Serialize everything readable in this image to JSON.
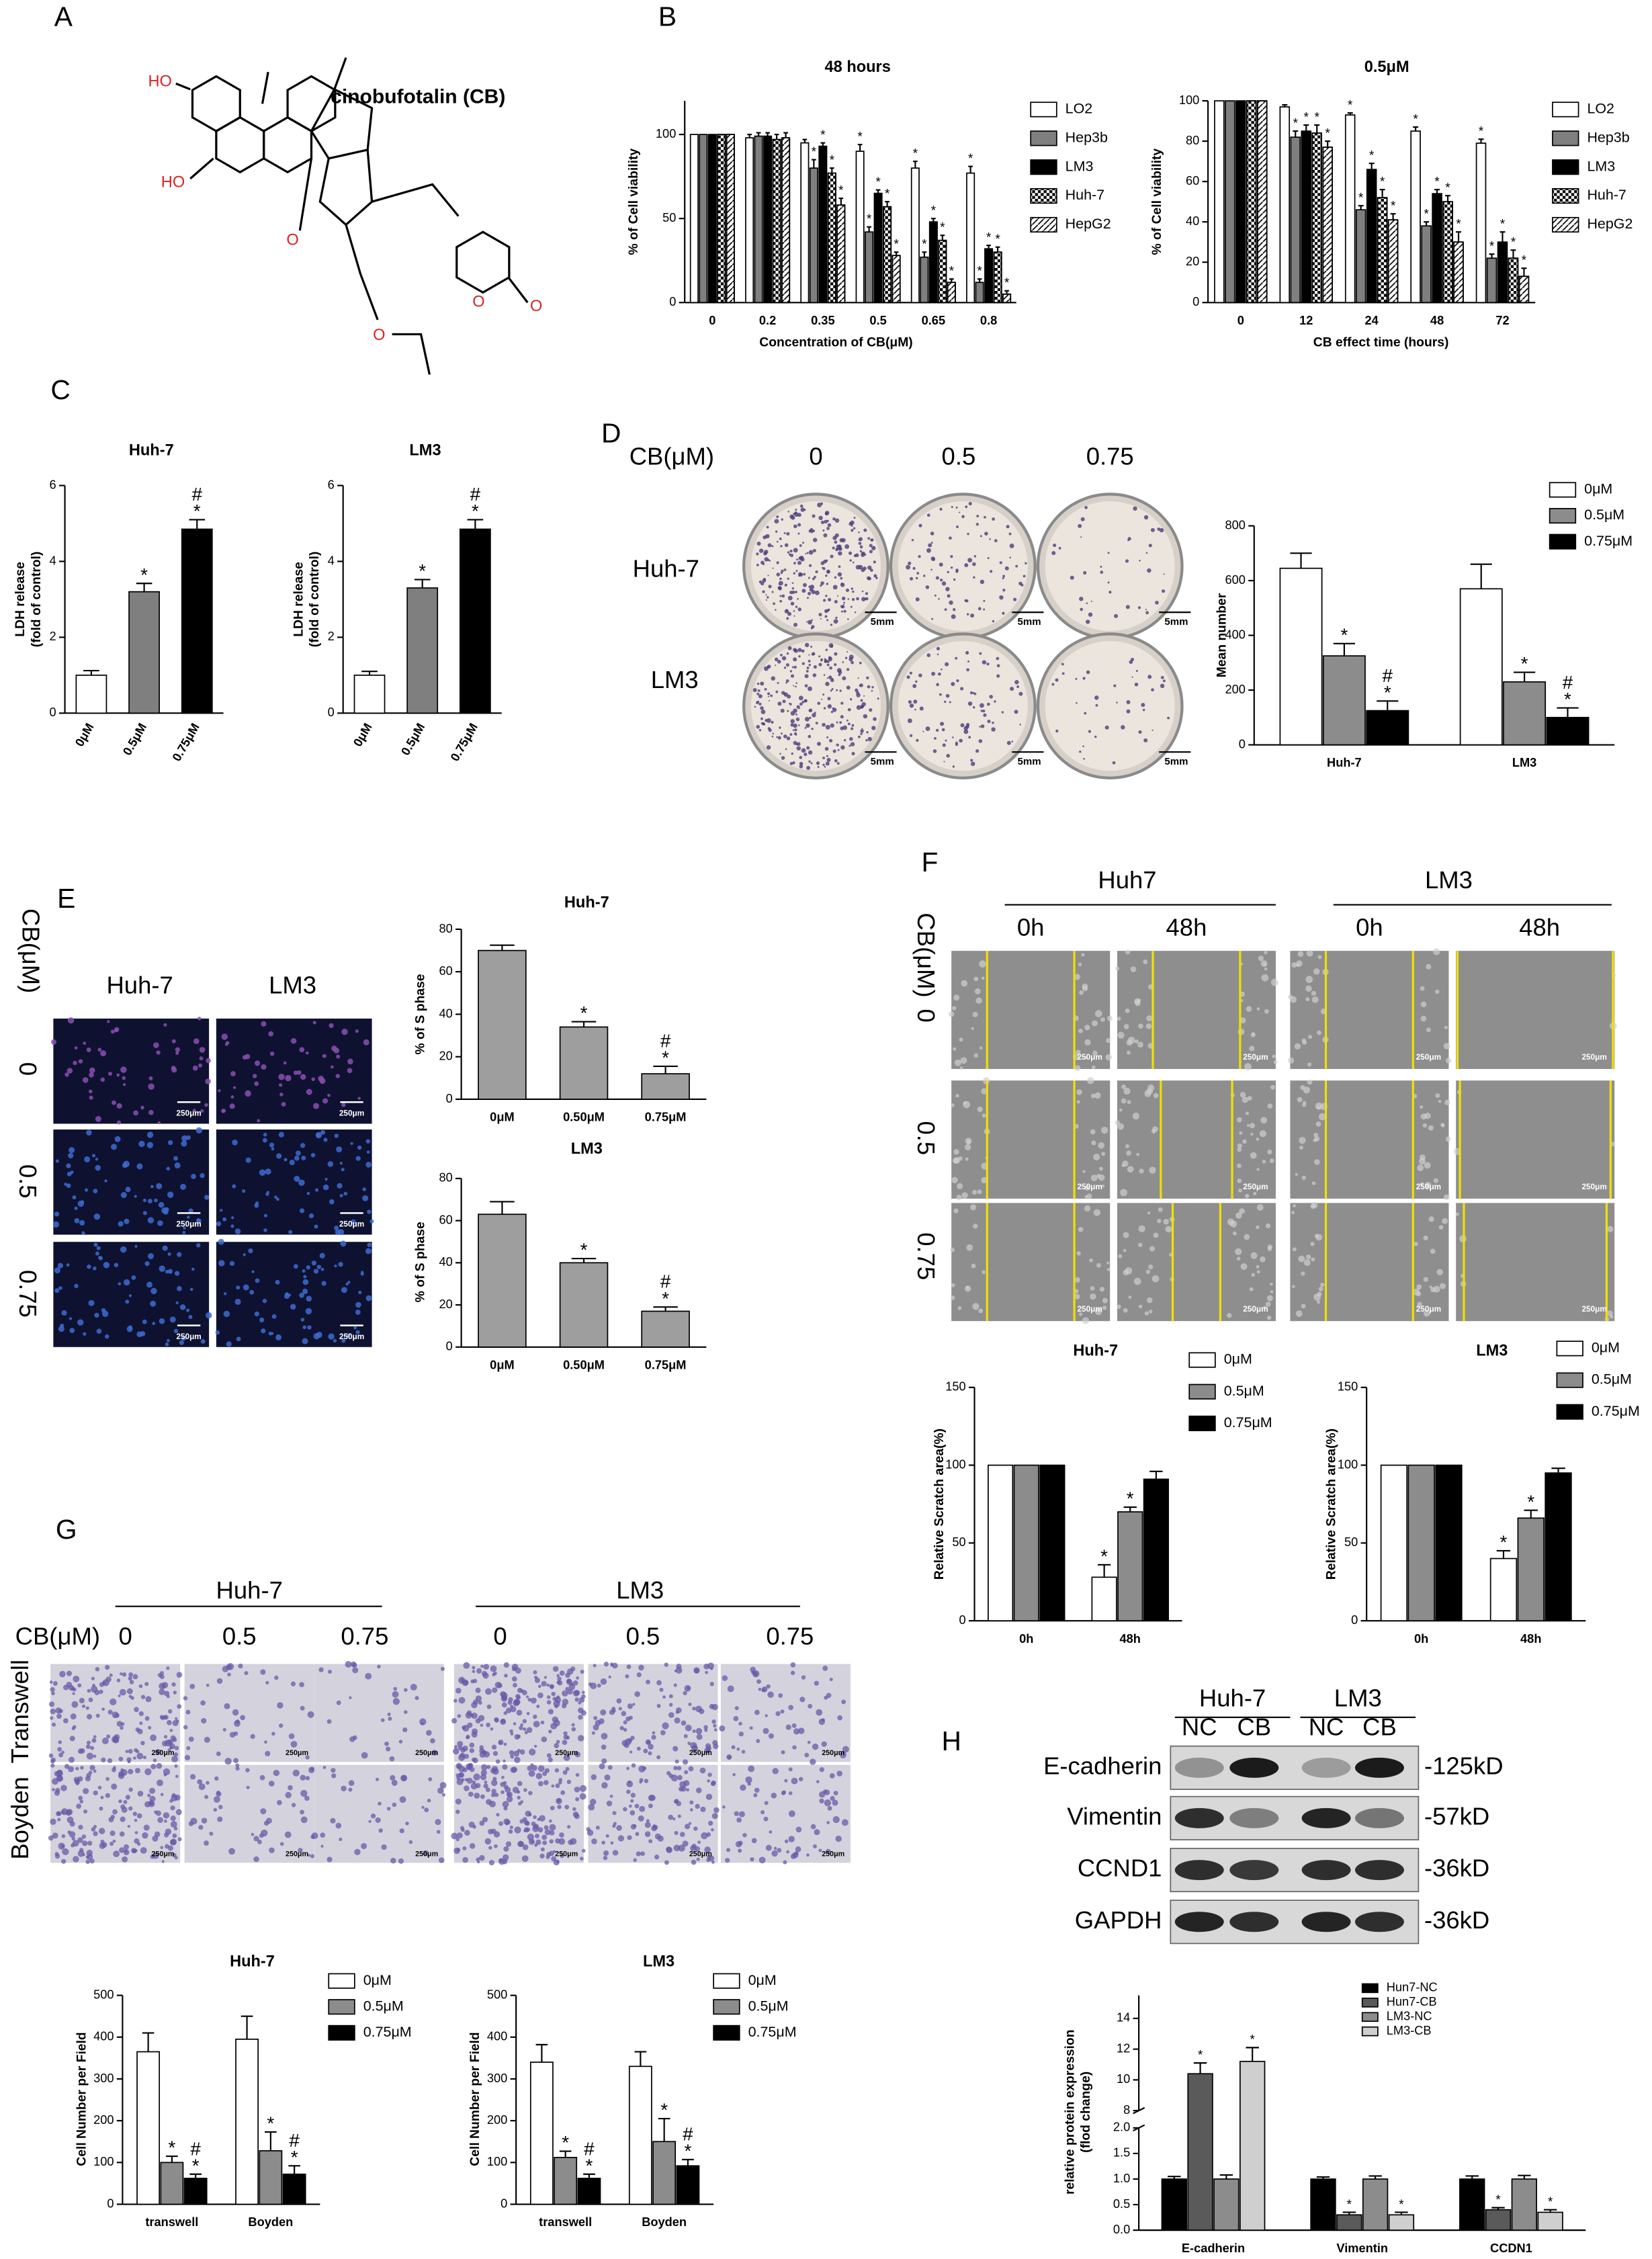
{
  "panels": {
    "letters": [
      "A",
      "B",
      "C",
      "D",
      "E",
      "F",
      "G",
      "H"
    ]
  },
  "panel_a": {
    "title": "cinobufotalin (CB)",
    "atoms": [
      "HO",
      "HO",
      "O",
      "O",
      "O",
      "O"
    ]
  },
  "panel_d": {
    "row_title": "CB(μM)",
    "doses": [
      "0",
      "0.5",
      "0.75"
    ],
    "lines": [
      "Huh-7",
      "LM3"
    ],
    "scale_labels": [
      "5mm",
      "5mm",
      "5mm",
      "5mm",
      "5mm",
      "5mm"
    ]
  },
  "panel_e": {
    "row_title": "CB(μM)",
    "doses": [
      "0",
      "0.5",
      "0.75"
    ],
    "lines": [
      "Huh-7",
      "LM3"
    ],
    "scale_labels": [
      "250μm",
      "250μm",
      "250μm",
      "250μm",
      "250μm",
      "250μm"
    ]
  },
  "panel_f": {
    "row_title": "CB(μM)",
    "doses": [
      "0",
      "0.5",
      "0.75"
    ],
    "lines": [
      "Huh7",
      "LM3"
    ],
    "times": [
      "0h",
      "48h",
      "0h",
      "48h"
    ],
    "scale_labels": [
      "250μm",
      "250μm",
      "250μm",
      "250μm",
      "250μm",
      "250μm",
      "250μm",
      "250μm",
      "250μm",
      "250μm",
      "250μm",
      "250μm"
    ]
  },
  "panel_g": {
    "row_title": "CB(μM)",
    "lines": [
      "Huh-7",
      "LM3"
    ],
    "doses": [
      "0",
      "0.5",
      "0.75",
      "0",
      "0.5",
      "0.75"
    ],
    "assays": [
      "Transwell",
      "Boyden"
    ],
    "scale_labels": [
      "250μm",
      "250μm",
      "250μm",
      "250μm",
      "250μm",
      "250μm",
      "250μm",
      "250μm",
      "250μm",
      "250μm",
      "250μm",
      "250μm"
    ]
  },
  "panel_h": {
    "lines": [
      "Huh-7",
      "LM3"
    ],
    "groups": [
      "NC",
      "CB",
      "NC",
      "CB"
    ],
    "proteins": [
      "E-cadherin",
      "Vimentin",
      "CCND1",
      "GAPDH"
    ],
    "sizes": [
      "-125kD",
      "-57kD",
      "-36kD",
      "-36kD"
    ]
  },
  "chart_data": [
    {
      "type": "bar",
      "title": "48 hours",
      "xlabel": "Concentration of CB(μM)",
      "ylabel": "% of Cell viability",
      "categories": [
        "0",
        "0.2",
        "0.35",
        "0.5",
        "0.65",
        "0.8"
      ],
      "ylim": [
        0,
        120
      ],
      "yticks": [
        0,
        50,
        100
      ],
      "series": [
        {
          "name": "LO2",
          "color": "#ffffff",
          "values": [
            100,
            98,
            95,
            90,
            80,
            77
          ],
          "errors": [
            0,
            2,
            2,
            4,
            4,
            4
          ],
          "sig": [
            null,
            null,
            null,
            "*",
            "*",
            "*"
          ]
        },
        {
          "name": "Hep3b",
          "color": "#7f7f7f",
          "values": [
            100,
            99,
            80,
            42,
            27,
            12
          ],
          "errors": [
            0,
            2,
            5,
            3,
            3,
            2
          ],
          "sig": [
            null,
            null,
            "*",
            "*",
            "*",
            "*"
          ]
        },
        {
          "name": "LM3",
          "color": "#000000",
          "values": [
            100,
            99,
            93,
            65,
            48,
            32
          ],
          "errors": [
            0,
            2,
            2,
            2,
            2,
            2
          ],
          "sig": [
            null,
            null,
            "*",
            "*",
            "*",
            "*"
          ]
        },
        {
          "name": "Huh-7",
          "color": "#ffffff",
          "pattern": "checker",
          "values": [
            100,
            97,
            77,
            57,
            37,
            30
          ],
          "errors": [
            0,
            3,
            3,
            3,
            3,
            3
          ],
          "sig": [
            null,
            null,
            "*",
            "*",
            "*",
            "*"
          ]
        },
        {
          "name": "HepG2",
          "color": "#ffffff",
          "pattern": "hatch",
          "values": [
            100,
            98,
            58,
            28,
            12,
            5
          ],
          "errors": [
            0,
            3,
            4,
            2,
            2,
            2
          ],
          "sig": [
            null,
            null,
            "*",
            "*",
            "*",
            "*"
          ]
        }
      ]
    },
    {
      "type": "bar",
      "title": "0.5μM",
      "xlabel": "CB effect time (hours)",
      "ylabel": "% of Cell viability",
      "categories": [
        "0",
        "12",
        "24",
        "48",
        "72"
      ],
      "ylim": [
        0,
        100
      ],
      "yticks": [
        0,
        20,
        40,
        60,
        80,
        100
      ],
      "series": [
        {
          "name": "LO2",
          "color": "#ffffff",
          "values": [
            100,
            97,
            93,
            85,
            79
          ],
          "errors": [
            0,
            1,
            1,
            2,
            2
          ],
          "sig": [
            null,
            null,
            "*",
            "*",
            "*"
          ]
        },
        {
          "name": "Hep3b",
          "color": "#7f7f7f",
          "values": [
            100,
            82,
            46,
            38,
            22
          ],
          "errors": [
            0,
            3,
            2,
            2,
            2
          ],
          "sig": [
            null,
            "*",
            "*",
            "*",
            "*"
          ]
        },
        {
          "name": "LM3",
          "color": "#000000",
          "values": [
            100,
            85,
            66,
            54,
            30
          ],
          "errors": [
            0,
            3,
            3,
            2,
            5
          ],
          "sig": [
            null,
            "*",
            "*",
            "*",
            "*"
          ]
        },
        {
          "name": "Huh-7",
          "color": "#ffffff",
          "pattern": "checker",
          "values": [
            100,
            84,
            52,
            50,
            22
          ],
          "errors": [
            0,
            4,
            4,
            3,
            4
          ],
          "sig": [
            null,
            "*",
            "*",
            "*",
            "*"
          ]
        },
        {
          "name": "HepG2",
          "color": "#ffffff",
          "pattern": "hatch",
          "values": [
            100,
            77,
            41,
            30,
            13
          ],
          "errors": [
            0,
            3,
            3,
            5,
            4
          ],
          "sig": [
            null,
            "*",
            "*",
            "*",
            "*"
          ]
        }
      ]
    },
    {
      "type": "bar",
      "title": "Huh-7",
      "ylabel": [
        "LDH release",
        "(fold of control)"
      ],
      "categories": [
        "0μM",
        "0.5μM",
        "0.75μM"
      ],
      "values": [
        1,
        3.2,
        4.85
      ],
      "errors": [
        0.12,
        0.22,
        0.25
      ],
      "colors": [
        "#ffffff",
        "#7f7f7f",
        "#000000"
      ],
      "sig": [
        null,
        [
          "*"
        ],
        [
          "#",
          "*"
        ]
      ],
      "ylim": [
        0,
        6
      ],
      "yticks": [
        0,
        2,
        4,
        6
      ]
    },
    {
      "type": "bar",
      "title": "LM3",
      "ylabel": [
        "LDH release",
        "(fold of control)"
      ],
      "categories": [
        "0μM",
        "0.5μM",
        "0.75μM"
      ],
      "values": [
        1,
        3.3,
        4.85
      ],
      "errors": [
        0.1,
        0.22,
        0.25
      ],
      "colors": [
        "#ffffff",
        "#7f7f7f",
        "#000000"
      ],
      "sig": [
        null,
        [
          "*"
        ],
        [
          "#",
          "*"
        ]
      ],
      "ylim": [
        0,
        6
      ],
      "yticks": [
        0,
        2,
        4,
        6
      ]
    },
    {
      "type": "bar",
      "ylabel": "Mean number",
      "categories": [
        "Huh-7",
        "LM3"
      ],
      "ylim": [
        0,
        800
      ],
      "yticks": [
        0,
        200,
        400,
        600,
        800
      ],
      "series": [
        {
          "name": "0μM",
          "color": "#ffffff",
          "values": [
            645,
            570
          ],
          "errors": [
            55,
            90
          ],
          "sig": [
            null,
            null
          ]
        },
        {
          "name": "0.5μM",
          "color": "#8c8c8c",
          "values": [
            325,
            230
          ],
          "errors": [
            45,
            35
          ],
          "sig": [
            "*",
            "*"
          ]
        },
        {
          "name": "0.75μM",
          "color": "#000000",
          "values": [
            125,
            100
          ],
          "errors": [
            35,
            35
          ],
          "sig": [
            [
              "#",
              "*"
            ],
            [
              "#",
              "*"
            ]
          ]
        }
      ]
    },
    {
      "type": "bar",
      "title": "Huh-7",
      "ylabel": "% of S phase",
      "categories": [
        "0μM",
        "0.50μM",
        "0.75μM"
      ],
      "values": [
        70,
        34,
        12
      ],
      "errors": [
        2.5,
        2.5,
        3.5
      ],
      "color": "#9e9e9e",
      "sig": [
        null,
        "*",
        [
          "#",
          "*"
        ]
      ],
      "ylim": [
        0,
        80
      ],
      "yticks": [
        0,
        20,
        40,
        60,
        80
      ]
    },
    {
      "type": "bar",
      "title": "LM3",
      "ylabel": "% of S phase",
      "categories": [
        "0μM",
        "0.50μM",
        "0.75μM"
      ],
      "values": [
        63,
        40,
        17
      ],
      "errors": [
        6,
        2,
        2
      ],
      "color": "#9e9e9e",
      "sig": [
        null,
        "*",
        [
          "#",
          "*"
        ]
      ],
      "ylim": [
        0,
        80
      ],
      "yticks": [
        0,
        20,
        40,
        60,
        80
      ]
    },
    {
      "type": "bar",
      "title": "Huh-7",
      "ylabel": "Relative Scratch area(%)",
      "categories": [
        "0h",
        "48h"
      ],
      "ylim": [
        0,
        150
      ],
      "yticks": [
        0,
        50,
        100,
        150
      ],
      "series": [
        {
          "name": "0μM",
          "color": "#ffffff",
          "values": [
            100,
            28
          ],
          "errors": [
            0,
            8
          ],
          "sig": [
            null,
            "*"
          ]
        },
        {
          "name": "0.5μM",
          "color": "#8c8c8c",
          "values": [
            100,
            70
          ],
          "errors": [
            0,
            3
          ],
          "sig": [
            null,
            "*"
          ]
        },
        {
          "name": "0.75μM",
          "color": "#000000",
          "values": [
            100,
            91
          ],
          "errors": [
            0,
            5
          ],
          "sig": [
            null,
            null
          ]
        }
      ]
    },
    {
      "type": "bar",
      "title": "LM3",
      "ylabel": "Relative Scratch area(%)",
      "categories": [
        "0h",
        "48h"
      ],
      "ylim": [
        0,
        150
      ],
      "yticks": [
        0,
        50,
        100,
        150
      ],
      "series": [
        {
          "name": "0μM",
          "color": "#ffffff",
          "values": [
            100,
            40
          ],
          "errors": [
            0,
            5
          ],
          "sig": [
            null,
            "*"
          ]
        },
        {
          "name": "0.5μM",
          "color": "#8c8c8c",
          "values": [
            100,
            66
          ],
          "errors": [
            0,
            5
          ],
          "sig": [
            null,
            "*"
          ]
        },
        {
          "name": "0.75μM",
          "color": "#000000",
          "values": [
            100,
            95
          ],
          "errors": [
            0,
            3
          ],
          "sig": [
            null,
            null
          ]
        }
      ]
    },
    {
      "type": "bar",
      "title": "Huh-7",
      "ylabel": "Cell Number per Field",
      "categories": [
        "transwell",
        "Boyden"
      ],
      "ylim": [
        0,
        500
      ],
      "yticks": [
        0,
        100,
        200,
        300,
        400,
        500
      ],
      "series": [
        {
          "name": "0μM",
          "color": "#ffffff",
          "values": [
            365,
            395
          ],
          "errors": [
            45,
            55
          ],
          "sig": [
            null,
            null
          ]
        },
        {
          "name": "0.5μM",
          "color": "#8c8c8c",
          "values": [
            100,
            128
          ],
          "errors": [
            15,
            45
          ],
          "sig": [
            "*",
            "*"
          ]
        },
        {
          "name": "0.75μM",
          "color": "#000000",
          "values": [
            62,
            72
          ],
          "errors": [
            10,
            20
          ],
          "sig": [
            [
              "#",
              "*"
            ],
            [
              "#",
              "*"
            ]
          ]
        }
      ]
    },
    {
      "type": "bar",
      "title": "LM3",
      "ylabel": "Cell Number per Field",
      "categories": [
        "transwell",
        "Boyden"
      ],
      "ylim": [
        0,
        500
      ],
      "yticks": [
        0,
        100,
        200,
        300,
        400,
        500
      ],
      "series": [
        {
          "name": "0μM",
          "color": "#ffffff",
          "values": [
            340,
            330
          ],
          "errors": [
            42,
            35
          ],
          "sig": [
            null,
            null
          ]
        },
        {
          "name": "0.5μM",
          "color": "#8c8c8c",
          "values": [
            112,
            150
          ],
          "errors": [
            15,
            55
          ],
          "sig": [
            "*",
            "*"
          ]
        },
        {
          "name": "0.75μM",
          "color": "#000000",
          "values": [
            62,
            92
          ],
          "errors": [
            10,
            15
          ],
          "sig": [
            [
              "#",
              "*"
            ],
            [
              "#",
              "*"
            ]
          ]
        }
      ]
    },
    {
      "type": "bar",
      "ylabel": [
        "relative protein expression",
        "(flod change)"
      ],
      "categories": [
        "E-cadherin",
        "Vimentin",
        "CCDN1"
      ],
      "ylim": [
        0,
        15.5
      ],
      "ybreak": [
        2,
        8
      ],
      "yticks": [
        {
          "value": 0,
          "label": "0.0"
        },
        0.5,
        {
          "value": 1,
          "label": "1.0"
        },
        1.5,
        {
          "value": 2,
          "label": "2.0"
        },
        8,
        10,
        12,
        14
      ],
      "series": [
        {
          "name": "Hun7-NC",
          "color": "#000000",
          "values": [
            1,
            1,
            1
          ],
          "errors": [
            0.05,
            0.04,
            0.06
          ],
          "sig": [
            null,
            null,
            null
          ]
        },
        {
          "name": "Hun7-CB",
          "color": "#5a5a5a",
          "values": [
            10.4,
            0.3,
            0.4
          ],
          "errors": [
            0.7,
            0.05,
            0.04
          ],
          "sig": [
            "*",
            "*",
            "*"
          ]
        },
        {
          "name": "LM3-NC",
          "color": "#8c8c8c",
          "values": [
            1,
            1,
            1
          ],
          "errors": [
            0.08,
            0.06,
            0.07
          ],
          "sig": [
            null,
            null,
            null
          ]
        },
        {
          "name": "LM3-CB",
          "color": "#cfcfcf",
          "values": [
            11.2,
            0.3,
            0.35
          ],
          "errors": [
            0.9,
            0.05,
            0.05
          ],
          "sig": [
            "*",
            "*",
            "*"
          ]
        }
      ]
    }
  ]
}
